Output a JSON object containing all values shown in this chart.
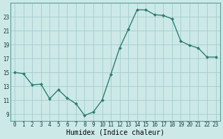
{
  "x": [
    0,
    1,
    2,
    3,
    4,
    5,
    6,
    7,
    8,
    9,
    10,
    11,
    12,
    13,
    14,
    15,
    16,
    17,
    18,
    19,
    20,
    21,
    22,
    23
  ],
  "y": [
    15.0,
    14.8,
    13.2,
    13.3,
    11.2,
    12.5,
    11.3,
    10.5,
    8.8,
    9.3,
    11.0,
    14.7,
    18.5,
    21.2,
    24.0,
    24.0,
    23.3,
    23.2,
    22.7,
    19.5,
    18.9,
    18.5,
    17.2,
    17.2
  ],
  "line_color": "#2e7d6e",
  "marker": "D",
  "marker_size": 2.0,
  "bg_color": "#cce9e7",
  "grid_color": "#a0cccb",
  "xlabel": "Humidex (Indice chaleur)",
  "xlim": [
    -0.5,
    23.5
  ],
  "ylim": [
    8.0,
    25.0
  ],
  "yticks": [
    9,
    11,
    13,
    15,
    17,
    19,
    21,
    23
  ],
  "xticks": [
    0,
    1,
    2,
    3,
    4,
    5,
    6,
    7,
    8,
    9,
    10,
    11,
    12,
    13,
    14,
    15,
    16,
    17,
    18,
    19,
    20,
    21,
    22,
    23
  ],
  "xtick_labels": [
    "0",
    "1",
    "2",
    "3",
    "4",
    "5",
    "6",
    "7",
    "8",
    "9",
    "10",
    "11",
    "12",
    "13",
    "14",
    "15",
    "16",
    "17",
    "18",
    "19",
    "20",
    "21",
    "22",
    "23"
  ],
  "tick_fontsize": 5.5,
  "xlabel_fontsize": 7.0,
  "line_width": 1.0,
  "font_family": "monospace"
}
